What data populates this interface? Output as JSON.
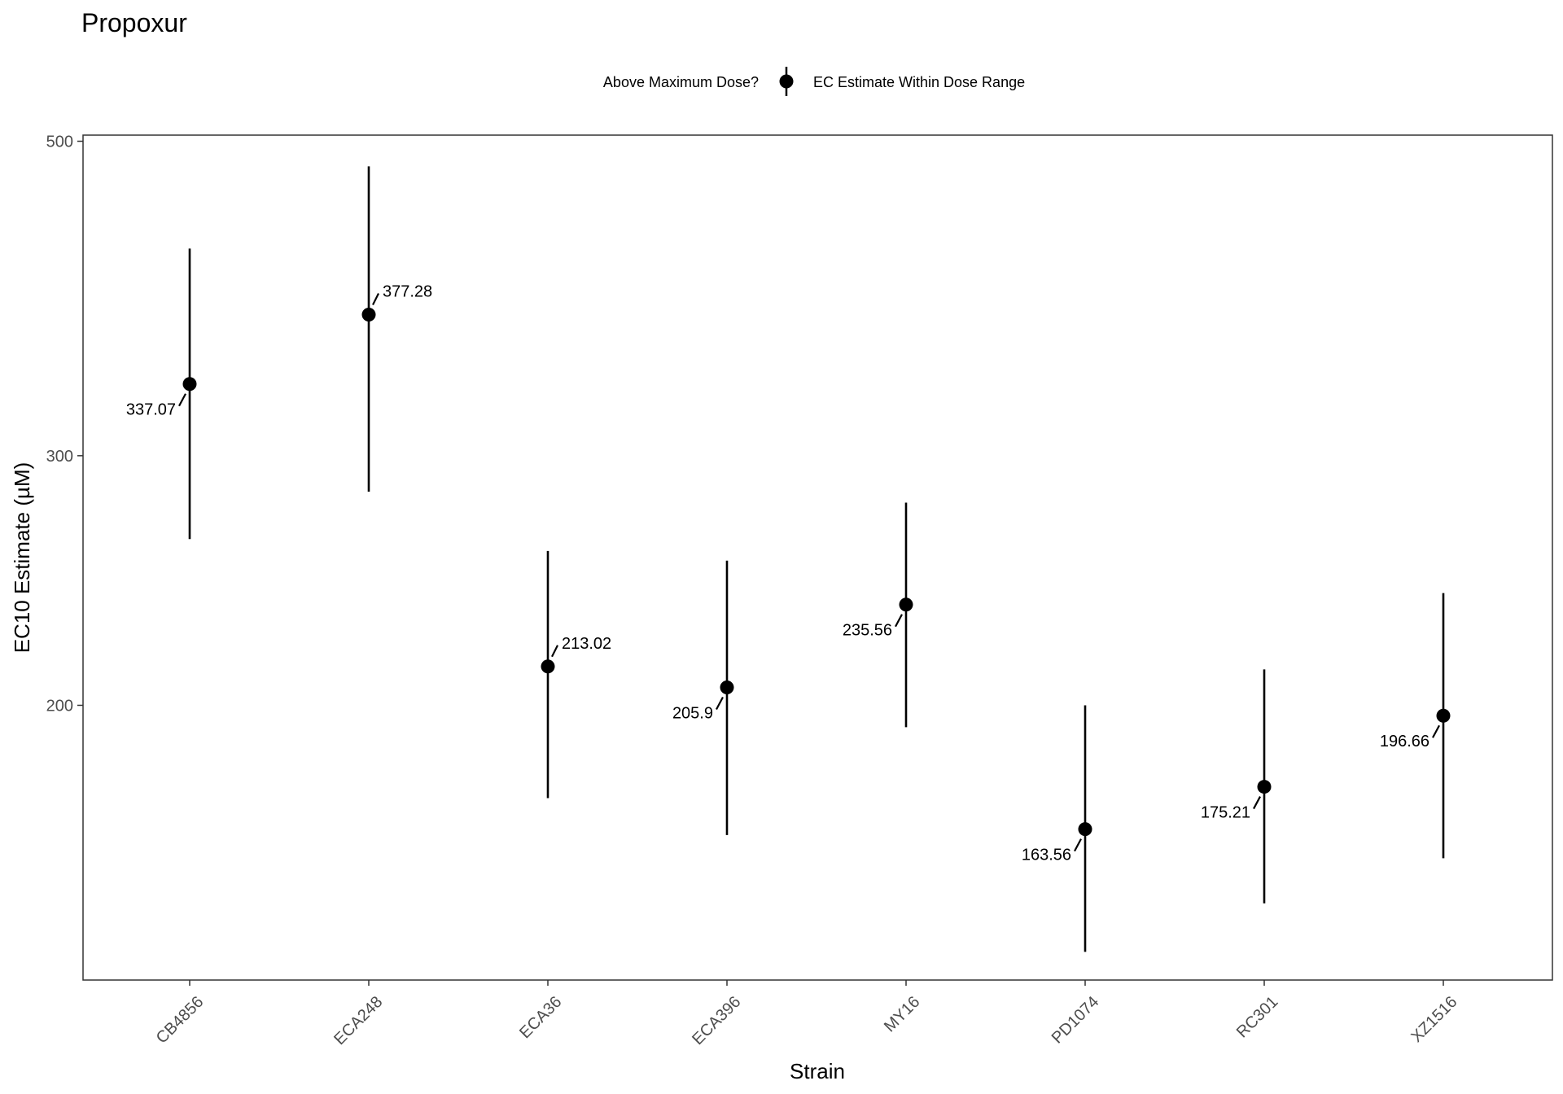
{
  "chart_data": {
    "type": "scatter",
    "title": "Propoxur",
    "xlabel": "Strain",
    "ylabel": "EC10 Estimate (µM)",
    "y_scale": "log",
    "ylim": [
      128,
      505
    ],
    "y_ticks": [
      200,
      300,
      500
    ],
    "grid": false,
    "legend": {
      "placement": "top",
      "title": "Above Maximum Dose?",
      "entries": [
        {
          "label": "EC Estimate Within Dose Range",
          "color": "#000000",
          "marker": "point-with-errorbar"
        }
      ]
    },
    "categories": [
      "CB4856",
      "ECA248",
      "ECA36",
      "ECA396",
      "MY16",
      "PD1074",
      "RC301",
      "XZ1516"
    ],
    "series": [
      {
        "name": "EC Estimate Within Dose Range",
        "color": "#000000",
        "points": [
          {
            "x": "CB4856",
            "y": 337.07,
            "lower": 262,
            "upper": 420,
            "label": "337.07",
            "label_side": "left"
          },
          {
            "x": "ECA248",
            "y": 377.28,
            "lower": 283,
            "upper": 480,
            "label": "377.28",
            "label_side": "right"
          },
          {
            "x": "ECA36",
            "y": 213.02,
            "lower": 172,
            "upper": 257,
            "label": "213.02",
            "label_side": "right"
          },
          {
            "x": "ECA396",
            "y": 205.9,
            "lower": 162,
            "upper": 253,
            "label": "205.9",
            "label_side": "left"
          },
          {
            "x": "MY16",
            "y": 235.56,
            "lower": 193,
            "upper": 278,
            "label": "235.56",
            "label_side": "left"
          },
          {
            "x": "PD1074",
            "y": 163.56,
            "lower": 134,
            "upper": 200,
            "label": "163.56",
            "label_side": "left"
          },
          {
            "x": "RC301",
            "y": 175.21,
            "lower": 145,
            "upper": 212,
            "label": "175.21",
            "label_side": "left"
          },
          {
            "x": "XZ1516",
            "y": 196.66,
            "lower": 156,
            "upper": 240,
            "label": "196.66",
            "label_side": "left"
          }
        ]
      }
    ]
  }
}
